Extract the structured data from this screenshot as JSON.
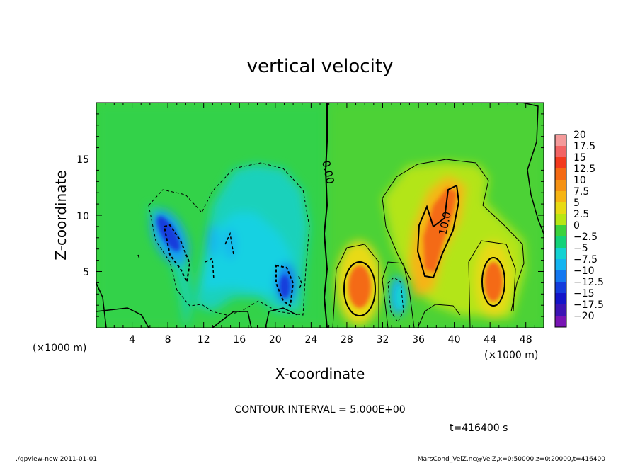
{
  "chart_data": {
    "type": "heatmap",
    "title": "vertical velocity",
    "xlabel": "X-coordinate",
    "ylabel": "Z-coordinate",
    "x_unit": "(×1000 m)",
    "y_unit": "(×1000 m)",
    "xlim": [
      0,
      50
    ],
    "ylim": [
      0,
      20
    ],
    "x_ticks": [
      "4",
      "8",
      "12",
      "16",
      "20",
      "24",
      "28",
      "32",
      "36",
      "40",
      "44",
      "48"
    ],
    "y_ticks": [
      "5",
      "10",
      "15"
    ],
    "colorbar": {
      "labels": [
        "20",
        "17.5",
        "15",
        "12.5",
        "10",
        "7.5",
        "5",
        "2.5",
        "0",
        "−2.5",
        "−5",
        "−7.5",
        "−10",
        "−12.5",
        "−15",
        "−17.5",
        "−20"
      ],
      "colors": [
        "#f49a9a",
        "#f26464",
        "#f23a1e",
        "#f46a14",
        "#f59214",
        "#f6b414",
        "#e8da14",
        "#b8e614",
        "#3cd23c",
        "#14d278",
        "#14d2d2",
        "#14b4f0",
        "#1478f0",
        "#143cdc",
        "#1414c8",
        "#3c14b4",
        "#7814b4"
      ]
    },
    "contour_labels": [
      "0.00",
      "10.0"
    ],
    "contour_interval": "CONTOUR INTERVAL = 5.000E+00",
    "time": "t=416400 s",
    "features": [
      {
        "kind": "updraft",
        "x": 29.5,
        "z": 3.5,
        "peak": 12.5
      },
      {
        "kind": "updraft",
        "x": 37.5,
        "z": 7.5,
        "peak": 12.5
      },
      {
        "kind": "updraft",
        "x": 39.5,
        "z": 11.0,
        "peak": 12.5
      },
      {
        "kind": "updraft",
        "x": 44.5,
        "z": 4.0,
        "peak": 12.5
      },
      {
        "kind": "downdraft",
        "x": 8.5,
        "z": 8.0,
        "peak": -12.5
      },
      {
        "kind": "downdraft",
        "x": 21.0,
        "z": 4.0,
        "peak": -12.5
      },
      {
        "kind": "downdraft",
        "x": 33.0,
        "z": 2.5,
        "peak": -7.5
      },
      {
        "kind": "downdraft",
        "x": 13.0,
        "z": 7.5,
        "peak": -7.5
      }
    ]
  },
  "footer": {
    "left": "./gpview-new   2011-01-01",
    "right": "MarsCond_VelZ.nc@VelZ,x=0:50000,z=0:20000,t=416400"
  }
}
